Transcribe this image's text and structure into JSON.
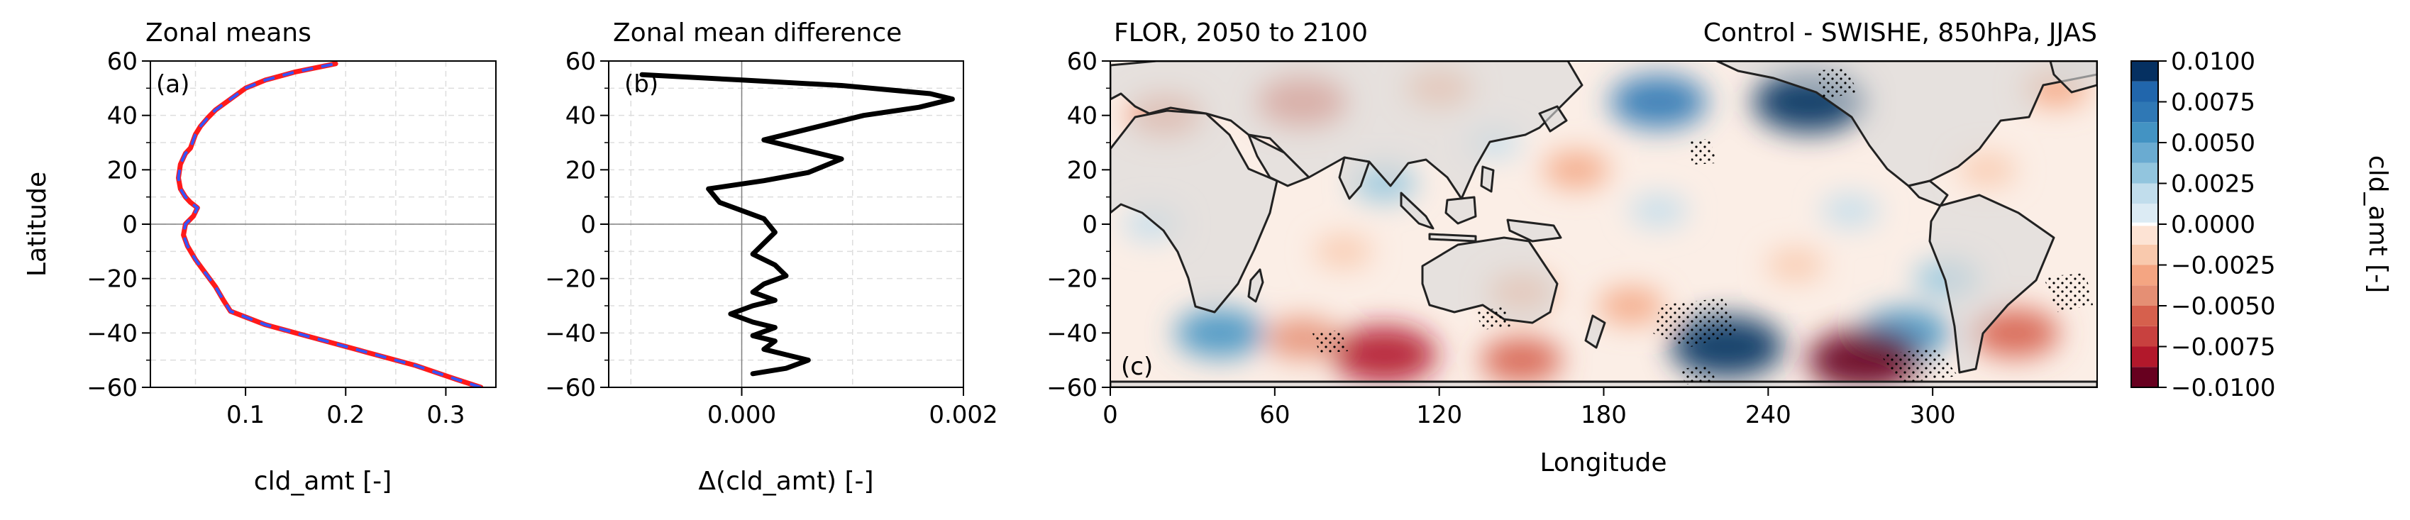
{
  "chart_data": [
    {
      "type": "line",
      "panel": "(a)",
      "title": "Zonal means",
      "xlabel": "cld_amt [-]",
      "ylabel": "Latitude",
      "xlim": [
        0.005,
        0.35
      ],
      "ylim": [
        -60,
        60
      ],
      "xticks": [
        0.1,
        0.2,
        0.3
      ],
      "xtick_labels": [
        "0.1",
        "0.2",
        "0.3"
      ],
      "yticks": [
        -60,
        -40,
        -20,
        0,
        20,
        40,
        60
      ],
      "ytick_labels": [
        "−60",
        "−40",
        "−20",
        "0",
        "20",
        "40",
        "60"
      ],
      "grid": true,
      "colors": {
        "series_1": "#ff1a1a",
        "series_2": "#3355ff"
      },
      "series": [
        {
          "style": "solid",
          "x": [
            0.335,
            0.31,
            0.27,
            0.22,
            0.17,
            0.12,
            0.085,
            0.078,
            0.07,
            0.06,
            0.05,
            0.042,
            0.038,
            0.04,
            0.048,
            0.052,
            0.045,
            0.04,
            0.035,
            0.033,
            0.035,
            0.04,
            0.045,
            0.047,
            0.05,
            0.055,
            0.062,
            0.07,
            0.085,
            0.1,
            0.12,
            0.15,
            0.19
          ],
          "y": [
            -60,
            -57,
            -52,
            -47,
            -42,
            -37,
            -32,
            -28,
            -23,
            -18,
            -13,
            -8,
            -4,
            0,
            3,
            6,
            8,
            10,
            13,
            17,
            22,
            26,
            28,
            30,
            33,
            36,
            39,
            42,
            46,
            50,
            53,
            56,
            59
          ]
        },
        {
          "style": "dashed",
          "x": [
            0.335,
            0.31,
            0.27,
            0.22,
            0.17,
            0.12,
            0.085,
            0.078,
            0.07,
            0.06,
            0.05,
            0.042,
            0.038,
            0.04,
            0.048,
            0.052,
            0.045,
            0.04,
            0.035,
            0.033,
            0.035,
            0.04,
            0.045,
            0.047,
            0.05,
            0.055,
            0.062,
            0.07,
            0.085,
            0.1,
            0.12,
            0.15,
            0.19
          ],
          "y": [
            -60,
            -57,
            -52,
            -47,
            -42,
            -37,
            -32,
            -28,
            -23,
            -18,
            -13,
            -8,
            -4,
            0,
            3,
            6,
            8,
            10,
            13,
            17,
            22,
            26,
            28,
            30,
            33,
            36,
            39,
            42,
            46,
            50,
            53,
            56,
            59
          ]
        }
      ]
    },
    {
      "type": "line",
      "panel": "(b)",
      "title": "Zonal mean difference",
      "xlabel": "Δ(cld_amt) [-]",
      "ylabel": "",
      "xlim": [
        -0.0012,
        0.002
      ],
      "ylim": [
        -60,
        60
      ],
      "xticks": [
        0.0,
        0.002
      ],
      "xtick_labels": [
        "0.000",
        "0.002"
      ],
      "yticks": [
        -60,
        -40,
        -20,
        0,
        20,
        40,
        60
      ],
      "ytick_labels": [
        "−60",
        "−40",
        "−20",
        "0",
        "20",
        "40",
        "60"
      ],
      "grid": true,
      "colors": {
        "line": "#000000"
      },
      "series": [
        {
          "x": [
            0.0001,
            0.0004,
            0.0006,
            0.0004,
            0.0002,
            0.0003,
            0.0001,
            0.0003,
            0.0001,
            -0.0001,
            0.0001,
            0.0003,
            0.0001,
            0.0002,
            0.0004,
            0.0003,
            0.0001,
            0.0002,
            0.0003,
            0.0002,
            -0.0002,
            -0.0003,
            0.0002,
            0.0006,
            0.0009,
            0.0005,
            0.0002,
            0.0006,
            0.0011,
            0.0016,
            0.0019,
            0.0017,
            0.0009,
            0.0,
            -0.0009
          ],
          "y": [
            -55,
            -53,
            -50,
            -48,
            -46,
            -43,
            -41,
            -38,
            -36,
            -33,
            -30,
            -28,
            -25,
            -22,
            -19,
            -15,
            -11,
            -7,
            -3,
            2,
            8,
            13,
            16,
            19,
            24,
            28,
            31,
            35,
            40,
            43,
            46,
            48,
            51,
            53,
            55
          ]
        }
      ]
    },
    {
      "type": "heatmap",
      "panel": "(c)",
      "title_left": "FLOR, 2050 to 2100",
      "title_right": "Control - SWISHE, 850hPa, JJAS",
      "xlabel": "Longitude",
      "ylabel": "",
      "xlim": [
        0,
        360
      ],
      "ylim": [
        -60,
        60
      ],
      "xticks": [
        0,
        60,
        120,
        180,
        240,
        300
      ],
      "xtick_labels": [
        "0",
        "60",
        "120",
        "180",
        "240",
        "300"
      ],
      "yticks": [
        -60,
        -40,
        -20,
        0,
        20,
        40,
        60
      ],
      "ytick_labels": [
        "−60",
        "−40",
        "−20",
        "0",
        "20",
        "40",
        "60"
      ],
      "map_features": "coastlines, stippling for significance, land shaded grey",
      "colorbar": {
        "label": "cld_amt [-]",
        "vmin": -0.01,
        "vmax": 0.01,
        "ticks": [
          0.01,
          0.0075,
          0.005,
          0.0025,
          0.0,
          -0.0025,
          -0.005,
          -0.0075,
          -0.01
        ],
        "tick_labels": [
          "0.0100",
          "0.0075",
          "0.0050",
          "0.0025",
          "0.0000",
          "−0.0025",
          "−0.0050",
          "−0.0075",
          "−0.0100"
        ],
        "levels": [
          -0.01,
          -0.00875,
          -0.0075,
          -0.00625,
          -0.005,
          -0.00375,
          -0.0025,
          -0.00125,
          -0.0001,
          0.0001,
          0.00125,
          0.0025,
          0.00375,
          0.005,
          0.00625,
          0.0075,
          0.00875,
          0.01
        ],
        "colors": [
          "#67001f",
          "#b2182b",
          "#c8413f",
          "#d6604d",
          "#e58f74",
          "#f4a582",
          "#f9c9ad",
          "#fde3d4",
          "#ffffff",
          "#dcebf4",
          "#c1ddec",
          "#92c5de",
          "#6aabd1",
          "#4393c3",
          "#2f78b5",
          "#2166ac",
          "#053061"
        ]
      },
      "anomalies": [
        {
          "lon": 150,
          "lat": -25,
          "value": -0.003
        },
        {
          "lon": 20,
          "lat": 40,
          "value": -0.004
        },
        {
          "lon": 15,
          "lat": 0,
          "value": 0.002
        },
        {
          "lon": 100,
          "lat": 15,
          "value": 0.003
        },
        {
          "lon": 70,
          "lat": 45,
          "value": -0.006
        },
        {
          "lon": 120,
          "lat": 50,
          "value": -0.003
        },
        {
          "lon": 170,
          "lat": 20,
          "value": -0.003
        },
        {
          "lon": 200,
          "lat": 45,
          "value": 0.007
        },
        {
          "lon": 255,
          "lat": 45,
          "value": 0.009
        },
        {
          "lon": 270,
          "lat": 5,
          "value": 0.002
        },
        {
          "lon": 305,
          "lat": -20,
          "value": 0.003
        },
        {
          "lon": 320,
          "lat": 20,
          "value": -0.002
        },
        {
          "lon": 345,
          "lat": 50,
          "value": -0.003
        },
        {
          "lon": 225,
          "lat": -45,
          "value": 0.009
        },
        {
          "lon": 290,
          "lat": -40,
          "value": 0.006
        },
        {
          "lon": 330,
          "lat": -40,
          "value": -0.006
        },
        {
          "lon": 275,
          "lat": -50,
          "value": -0.009
        },
        {
          "lon": 40,
          "lat": -40,
          "value": 0.006
        },
        {
          "lon": 70,
          "lat": -42,
          "value": -0.004
        },
        {
          "lon": 100,
          "lat": -48,
          "value": -0.008
        },
        {
          "lon": 150,
          "lat": -50,
          "value": -0.005
        },
        {
          "lon": 190,
          "lat": -30,
          "value": -0.003
        },
        {
          "lon": 250,
          "lat": -15,
          "value": -0.002
        },
        {
          "lon": 85,
          "lat": -10,
          "value": -0.002
        },
        {
          "lon": 200,
          "lat": 5,
          "value": 0.002
        },
        {
          "lon": 140,
          "lat": 30,
          "value": 0.0015
        }
      ]
    }
  ]
}
